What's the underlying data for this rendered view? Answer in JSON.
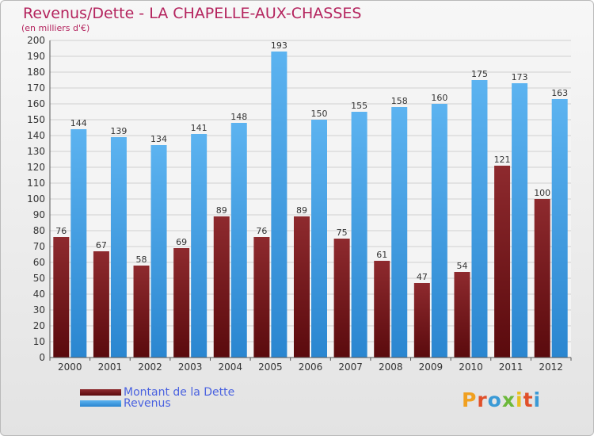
{
  "chart_data": {
    "type": "bar",
    "title": "Revenus/Dette - LA CHAPELLE-AUX-CHASSES",
    "subtitle": "(en milliers d'€)",
    "categories": [
      "2000",
      "2001",
      "2002",
      "2003",
      "2004",
      "2005",
      "2006",
      "2007",
      "2008",
      "2009",
      "2010",
      "2011",
      "2012"
    ],
    "series": [
      {
        "name": "Montant de la Dette",
        "color": "#7a1a1d",
        "values": [
          76,
          67,
          58,
          69,
          89,
          76,
          89,
          75,
          61,
          47,
          54,
          121,
          100
        ]
      },
      {
        "name": "Revenus",
        "color": "#3d9ee6",
        "values": [
          144,
          139,
          134,
          141,
          148,
          193,
          150,
          155,
          158,
          160,
          175,
          173,
          163
        ]
      }
    ],
    "yticks": [
      0,
      10,
      20,
      30,
      40,
      50,
      60,
      70,
      80,
      90,
      100,
      110,
      120,
      130,
      140,
      150,
      160,
      170,
      180,
      190,
      200
    ],
    "ylim": [
      0,
      200
    ],
    "grid": true,
    "legend_position": "bottom-left"
  },
  "logo": {
    "letters": [
      "P",
      "r",
      "o",
      "x",
      "i",
      "t",
      "i"
    ],
    "colors": [
      "#f0a020",
      "#e0502a",
      "#3a9ad6",
      "#6cb83a",
      "#e8c020",
      "#e0502a",
      "#3a9ad6"
    ]
  }
}
